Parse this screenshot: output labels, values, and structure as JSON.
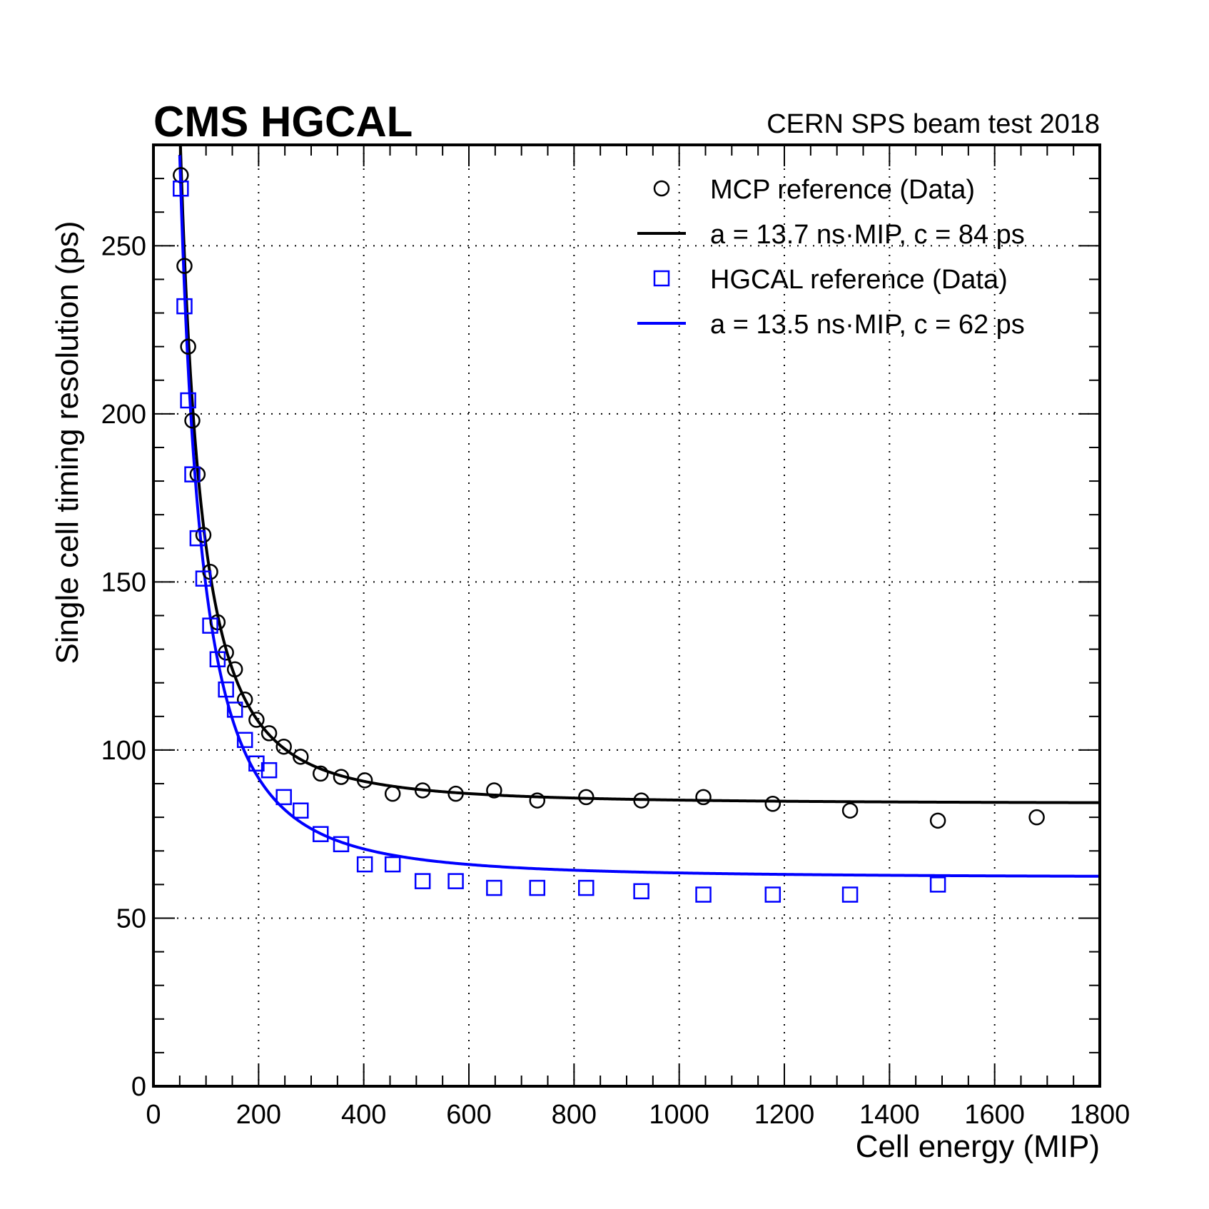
{
  "header": {
    "experiment": "CMS HGCAL",
    "subtitle": "CERN SPS beam test 2018"
  },
  "legend": {
    "entries": [
      {
        "label": "MCP reference (Data)",
        "kind": "marker-circle",
        "color": "#000000"
      },
      {
        "label": "a = 13.7 ns·MIP, c = 84 ps",
        "kind": "line",
        "color": "#000000"
      },
      {
        "label": "HGCAL reference (Data)",
        "kind": "marker-square",
        "color": "#0000ff"
      },
      {
        "label": "a = 13.5 ns·MIP, c = 62 ps",
        "kind": "line",
        "color": "#0000ff"
      }
    ]
  },
  "chart_data": {
    "type": "scatter",
    "title": "CMS HGCAL",
    "subtitle": "CERN SPS beam test 2018",
    "xlabel": "Cell energy (MIP)",
    "ylabel": "Single cell timing resolution (ps)",
    "xlim": [
      0,
      1800
    ],
    "ylim": [
      0,
      280
    ],
    "xticks": [
      0,
      200,
      400,
      600,
      800,
      1000,
      1200,
      1400,
      1600,
      1800
    ],
    "yticks": [
      0,
      50,
      100,
      150,
      200,
      250
    ],
    "grid": true,
    "series": [
      {
        "name": "MCP reference (Data)",
        "kind": "points",
        "marker": "circle",
        "color": "#000000",
        "x": [
          52,
          59,
          66,
          74,
          84,
          95,
          108,
          122,
          138,
          155,
          174,
          196,
          220,
          248,
          280,
          318,
          357,
          402,
          455,
          512,
          575,
          648,
          730,
          823,
          928,
          1046,
          1178,
          1325,
          1492,
          1680
        ],
        "y": [
          271,
          244,
          220,
          198,
          182,
          164,
          153,
          138,
          129,
          124,
          115,
          109,
          105,
          101,
          98,
          93,
          92,
          91,
          87,
          88,
          87,
          88,
          85,
          86,
          85,
          86,
          84,
          82,
          79,
          80
        ]
      },
      {
        "name": "a = 13.7 ns·MIP, c = 84 ps",
        "kind": "fit",
        "color": "#000000",
        "a_ns_mip": 13.7,
        "c_ps": 84,
        "formula": "sqrt((a/E)^2 + c^2)",
        "x_range": [
          50,
          1800
        ]
      },
      {
        "name": "HGCAL reference (Data)",
        "kind": "points",
        "marker": "square",
        "color": "#0000ff",
        "x": [
          52,
          59,
          66,
          74,
          84,
          95,
          108,
          122,
          138,
          155,
          174,
          196,
          220,
          248,
          280,
          318,
          357,
          402,
          455,
          512,
          575,
          648,
          730,
          823,
          928,
          1046,
          1178,
          1325,
          1492
        ],
        "y": [
          267,
          232,
          204,
          182,
          163,
          151,
          137,
          127,
          118,
          112,
          103,
          96,
          94,
          86,
          82,
          75,
          72,
          66,
          66,
          61,
          61,
          59,
          59,
          59,
          58,
          57,
          57,
          57,
          60
        ]
      },
      {
        "name": "a = 13.5 ns·MIP, c = 62 ps",
        "kind": "fit",
        "color": "#0000ff",
        "a_ns_mip": 13.5,
        "c_ps": 62,
        "formula": "sqrt((a/E)^2 + c^2)",
        "x_range": [
          50,
          1800
        ]
      }
    ]
  }
}
